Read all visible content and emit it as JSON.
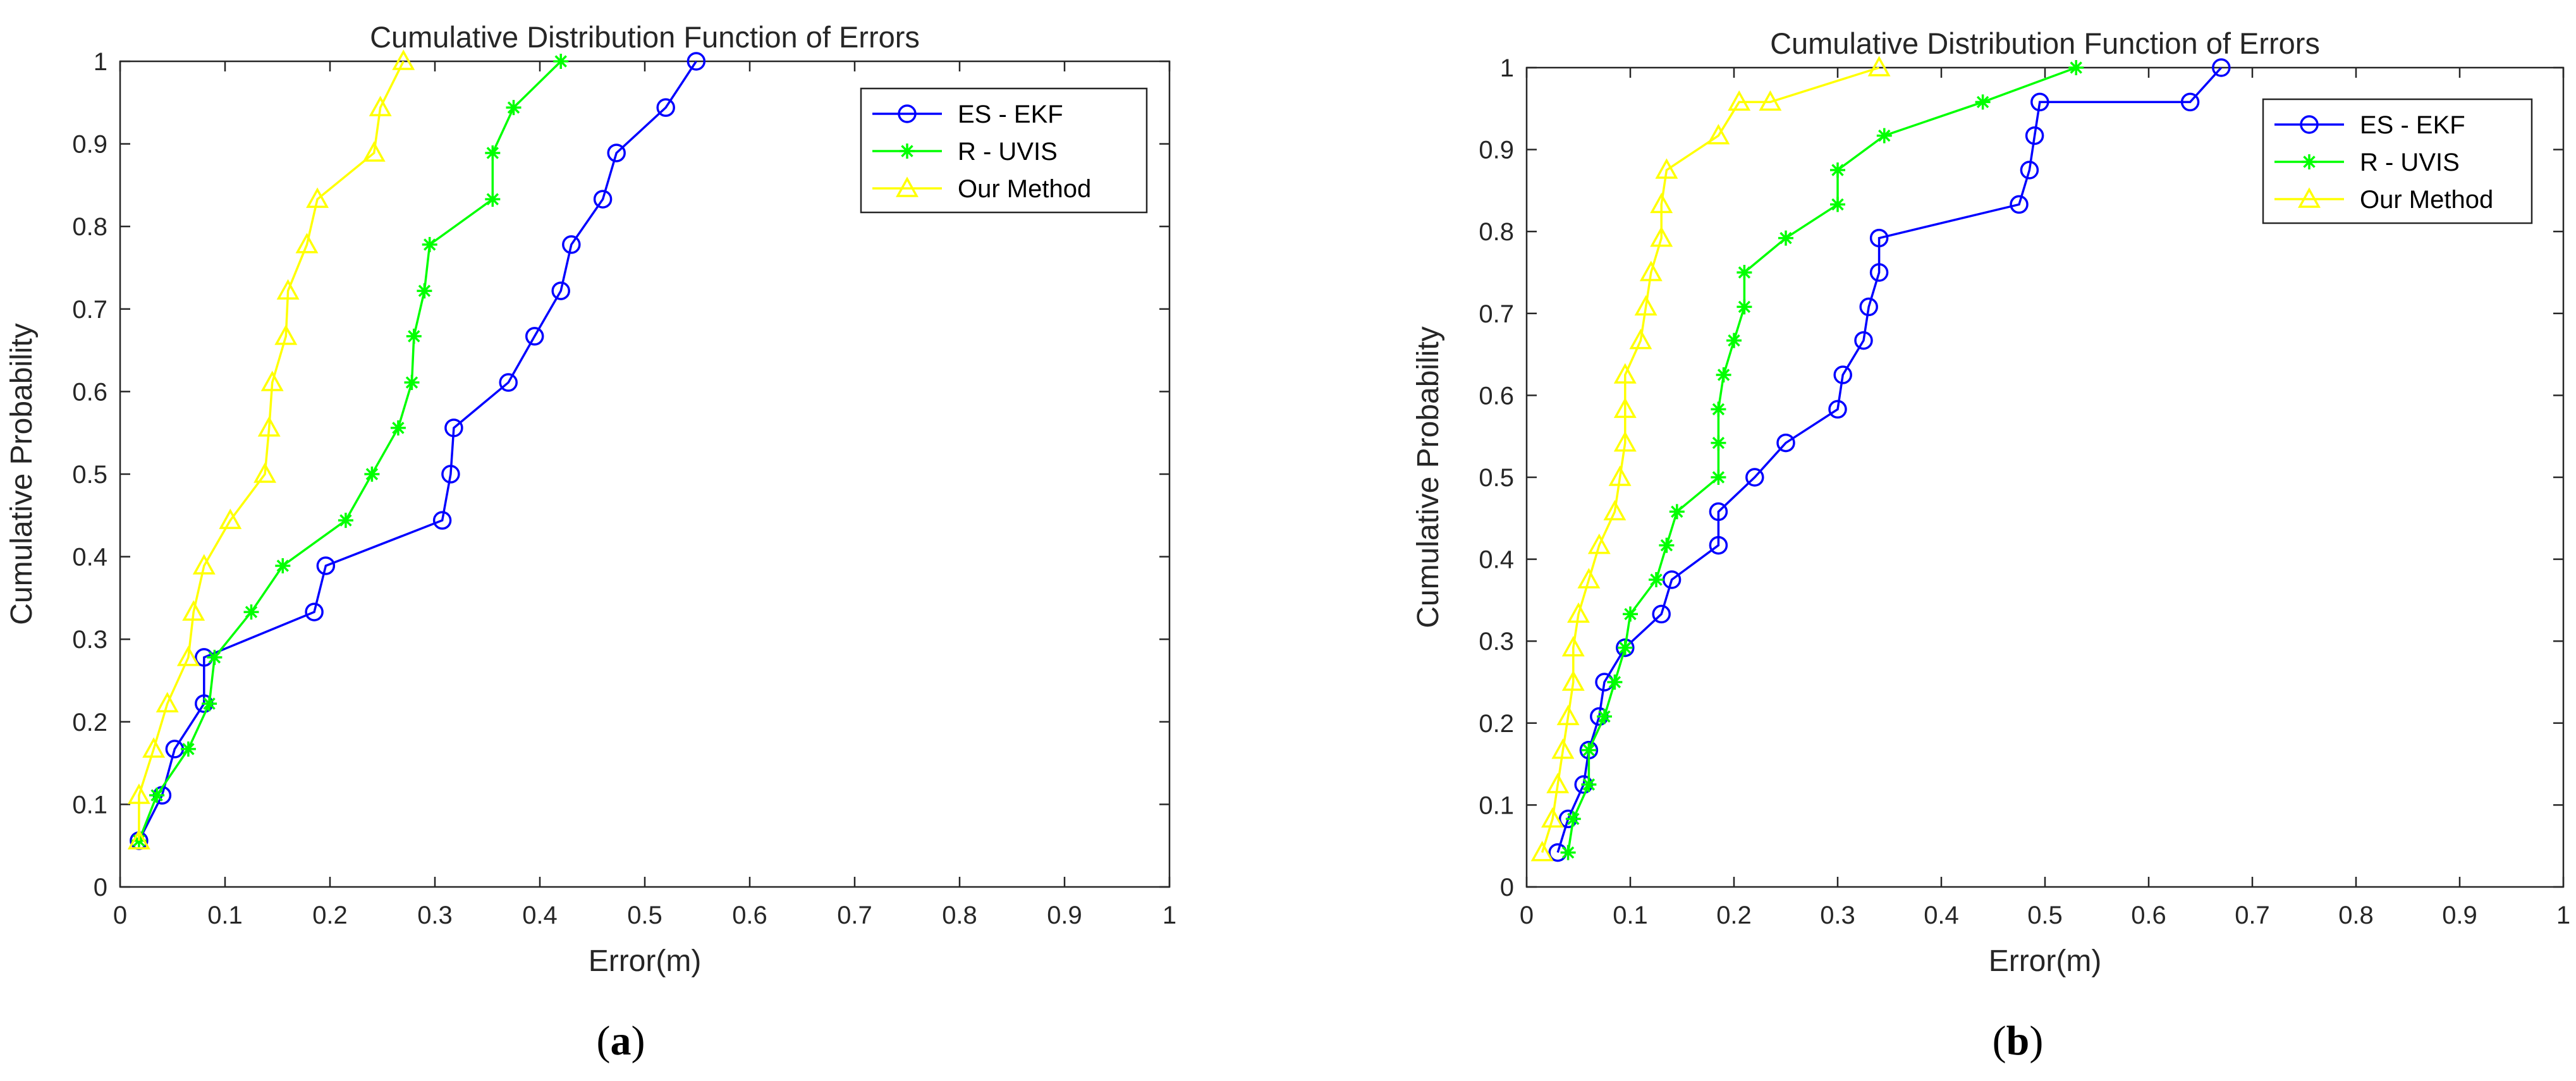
{
  "figure": {
    "panels": [
      "(a)",
      "(b)"
    ],
    "panel_labels": [
      {
        "open": "(",
        "letter": "a",
        "close": ")"
      },
      {
        "open": "(",
        "letter": "b",
        "close": ")"
      }
    ]
  },
  "chart_data": [
    {
      "type": "line",
      "title": "Cumulative Distribution Function of Errors",
      "xlabel": "Error(m)",
      "ylabel": "Cumulative Probability",
      "xlim": [
        0,
        1
      ],
      "ylim": [
        0,
        1
      ],
      "xticks": [
        "0",
        "0.1",
        "0.2",
        "0.3",
        "0.4",
        "0.5",
        "0.6",
        "0.7",
        "0.8",
        "0.9",
        "1"
      ],
      "yticks": [
        "0",
        "0.1",
        "0.2",
        "0.3",
        "0.4",
        "0.5",
        "0.6",
        "0.7",
        "0.8",
        "0.9",
        "1"
      ],
      "grid": false,
      "legend": "top-right",
      "series": [
        {
          "name": "ES - EKF",
          "color": "#0000ff",
          "marker": "circle",
          "x": [
            0.018,
            0.04,
            0.052,
            0.08,
            0.08,
            0.185,
            0.196,
            0.307,
            0.315,
            0.318,
            0.37,
            0.395,
            0.42,
            0.43,
            0.46,
            0.473,
            0.52,
            0.549
          ],
          "y": [
            0.056,
            0.111,
            0.167,
            0.222,
            0.278,
            0.333,
            0.389,
            0.444,
            0.5,
            0.556,
            0.611,
            0.667,
            0.722,
            0.778,
            0.833,
            0.889,
            0.944,
            1.0
          ]
        },
        {
          "name": "R - UVIS",
          "color": "#00ff00",
          "marker": "asterisk",
          "x": [
            0.018,
            0.035,
            0.065,
            0.085,
            0.09,
            0.125,
            0.155,
            0.215,
            0.24,
            0.265,
            0.278,
            0.28,
            0.29,
            0.295,
            0.355,
            0.355,
            0.375,
            0.42
          ],
          "y": [
            0.056,
            0.111,
            0.167,
            0.222,
            0.278,
            0.333,
            0.389,
            0.444,
            0.5,
            0.556,
            0.611,
            0.667,
            0.722,
            0.778,
            0.833,
            0.889,
            0.944,
            1.0
          ]
        },
        {
          "name": "Our Method",
          "color": "#ffff00",
          "marker": "triangle",
          "x": [
            0.018,
            0.018,
            0.032,
            0.045,
            0.065,
            0.07,
            0.08,
            0.105,
            0.138,
            0.142,
            0.145,
            0.158,
            0.16,
            0.178,
            0.188,
            0.242,
            0.248,
            0.27
          ],
          "y": [
            0.056,
            0.111,
            0.167,
            0.222,
            0.278,
            0.333,
            0.389,
            0.444,
            0.5,
            0.556,
            0.611,
            0.667,
            0.722,
            0.778,
            0.833,
            0.889,
            0.944,
            1.0
          ]
        }
      ]
    },
    {
      "type": "line",
      "title": "Cumulative Distribution Function of Errors",
      "xlabel": "Error(m)",
      "ylabel": "Cumulative Probability",
      "xlim": [
        0,
        1
      ],
      "ylim": [
        0,
        1
      ],
      "xticks": [
        "0",
        "0.1",
        "0.2",
        "0.3",
        "0.4",
        "0.5",
        "0.6",
        "0.7",
        "0.8",
        "0.9",
        "1"
      ],
      "yticks": [
        "0",
        "0.1",
        "0.2",
        "0.3",
        "0.4",
        "0.5",
        "0.6",
        "0.7",
        "0.8",
        "0.9",
        "1"
      ],
      "grid": false,
      "legend": "top-right",
      "series": [
        {
          "name": "ES - EKF",
          "color": "#0000ff",
          "marker": "circle",
          "x": [
            0.03,
            0.04,
            0.055,
            0.06,
            0.07,
            0.075,
            0.095,
            0.13,
            0.14,
            0.185,
            0.185,
            0.22,
            0.25,
            0.3,
            0.305,
            0.325,
            0.33,
            0.34,
            0.34,
            0.475,
            0.485,
            0.49,
            0.495,
            0.64,
            0.67
          ],
          "y": [
            0.042,
            0.083,
            0.125,
            0.167,
            0.208,
            0.25,
            0.292,
            0.333,
            0.375,
            0.417,
            0.458,
            0.5,
            0.542,
            0.583,
            0.625,
            0.667,
            0.708,
            0.75,
            0.792,
            0.833,
            0.875,
            0.917,
            0.958,
            0.958,
            1.0
          ]
        },
        {
          "name": "R - UVIS",
          "color": "#00ff00",
          "marker": "asterisk",
          "x": [
            0.04,
            0.045,
            0.06,
            0.06,
            0.075,
            0.085,
            0.095,
            0.1,
            0.125,
            0.135,
            0.145,
            0.185,
            0.185,
            0.185,
            0.19,
            0.2,
            0.21,
            0.21,
            0.25,
            0.3,
            0.3,
            0.345,
            0.44,
            0.53
          ],
          "y": [
            0.042,
            0.083,
            0.125,
            0.167,
            0.208,
            0.25,
            0.292,
            0.333,
            0.375,
            0.417,
            0.458,
            0.5,
            0.542,
            0.583,
            0.625,
            0.667,
            0.708,
            0.75,
            0.792,
            0.833,
            0.875,
            0.917,
            0.958,
            1.0
          ]
        },
        {
          "name": "Our Method",
          "color": "#ffff00",
          "marker": "triangle",
          "x": [
            0.015,
            0.025,
            0.03,
            0.035,
            0.04,
            0.045,
            0.045,
            0.05,
            0.06,
            0.07,
            0.085,
            0.09,
            0.095,
            0.095,
            0.095,
            0.11,
            0.115,
            0.12,
            0.13,
            0.13,
            0.135,
            0.185,
            0.205,
            0.235,
            0.34
          ],
          "y": [
            0.042,
            0.083,
            0.125,
            0.167,
            0.208,
            0.25,
            0.292,
            0.333,
            0.375,
            0.417,
            0.458,
            0.5,
            0.542,
            0.583,
            0.625,
            0.667,
            0.708,
            0.75,
            0.792,
            0.833,
            0.875,
            0.917,
            0.958,
            0.958,
            1.0
          ]
        }
      ]
    }
  ]
}
